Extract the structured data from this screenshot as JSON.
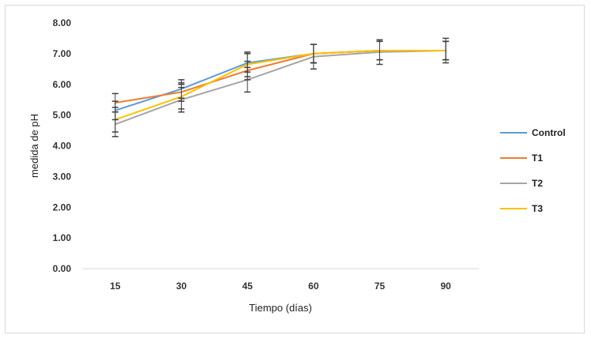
{
  "chart_data": {
    "type": "line",
    "title": "",
    "xlabel": "Tiempo (días)",
    "ylabel": "medida de pH",
    "x": [
      15,
      30,
      45,
      60,
      75,
      90
    ],
    "ylim": [
      0,
      8
    ],
    "yticks": [
      "0.00",
      "1.00",
      "2.00",
      "3.00",
      "4.00",
      "5.00",
      "6.00",
      "7.00",
      "8.00"
    ],
    "grid": false,
    "legend_position": "right",
    "series": [
      {
        "name": "Control",
        "color": "#5b9bd5",
        "values": [
          5.15,
          5.85,
          6.7,
          7.0,
          7.1,
          7.1
        ],
        "error": [
          0.3,
          0.3,
          0.3,
          0.3,
          0.3,
          0.3
        ]
      },
      {
        "name": "T1",
        "color": "#ed7d31",
        "values": [
          5.4,
          5.75,
          6.45,
          7.0,
          7.1,
          7.1
        ],
        "error": [
          0.3,
          0.3,
          0.3,
          0.3,
          0.3,
          0.3
        ]
      },
      {
        "name": "T2",
        "color": "#a5a5a5",
        "values": [
          4.7,
          5.5,
          6.15,
          6.9,
          7.05,
          7.1
        ],
        "error": [
          0.4,
          0.4,
          0.4,
          0.4,
          0.4,
          0.4
        ]
      },
      {
        "name": "T3",
        "color": "#ffc000",
        "values": [
          4.85,
          5.6,
          6.65,
          7.0,
          7.1,
          7.1
        ],
        "error": [
          0.4,
          0.4,
          0.4,
          0.3,
          0.3,
          0.3
        ]
      }
    ]
  }
}
